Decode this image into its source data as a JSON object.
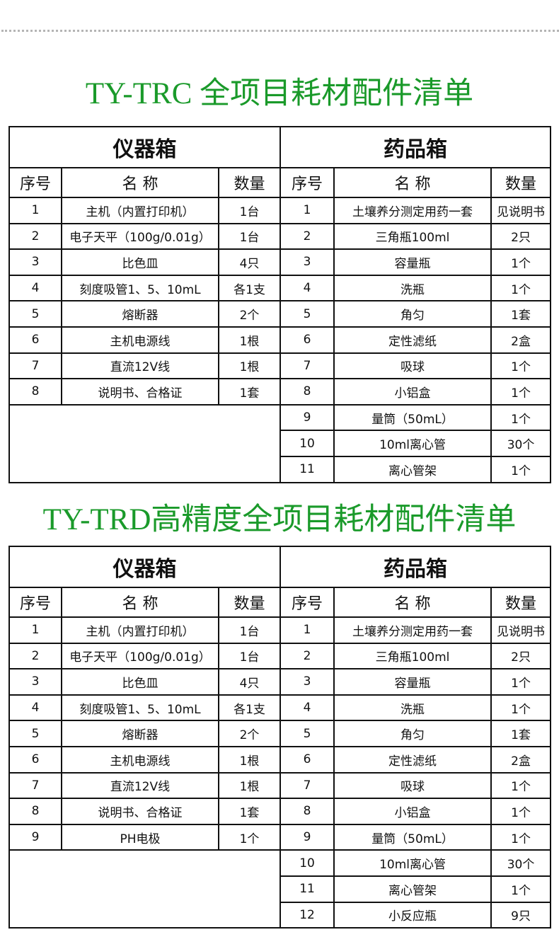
{
  "sections": [
    {
      "title": "TY-TRC 全项目耗材配件清单",
      "left_box": "仪器箱",
      "right_box": "药品箱",
      "headers": [
        "序号",
        "名 称",
        "数量"
      ],
      "instrument_items": [
        [
          "1",
          "主机（内置打印机）",
          "1台"
        ],
        [
          "2",
          "电子天平（100g/0.01g）",
          "1台"
        ],
        [
          "3",
          "比色皿",
          "4只"
        ],
        [
          "4",
          "刻度吸管1、5、10mL",
          "各1支"
        ],
        [
          "5",
          "熔断器",
          "2个"
        ],
        [
          "6",
          "主机电源线",
          "1根"
        ],
        [
          "7",
          "直流12V线",
          "1根"
        ],
        [
          "8",
          "说明书、合格证",
          "1套"
        ]
      ],
      "reagent_items": [
        [
          "1",
          "土壤养分测定用药一套",
          "见说明书"
        ],
        [
          "2",
          "三角瓶100ml",
          "2只"
        ],
        [
          "3",
          "容量瓶",
          "1个"
        ],
        [
          "4",
          "洗瓶",
          "1个"
        ],
        [
          "5",
          "角匀",
          "1套"
        ],
        [
          "6",
          "定性滤纸",
          "2盒"
        ],
        [
          "7",
          "吸球",
          "1个"
        ],
        [
          "8",
          "小铝盒",
          "1个"
        ],
        [
          "9",
          "量筒（50mL）",
          "1个"
        ],
        [
          "10",
          "10ml离心管",
          "30个"
        ],
        [
          "11",
          "离心管架",
          "1个"
        ]
      ]
    },
    {
      "title": "TY-TRD高精度全项目耗材配件清单",
      "left_box": "仪器箱",
      "right_box": "药品箱",
      "headers": [
        "序号",
        "名 称",
        "数量"
      ],
      "instrument_items": [
        [
          "1",
          "主机（内置打印机）",
          "1台"
        ],
        [
          "2",
          "电子天平（100g/0.01g）",
          "1台"
        ],
        [
          "3",
          "比色皿",
          "4只"
        ],
        [
          "4",
          "刻度吸管1、5、10mL",
          "各1支"
        ],
        [
          "5",
          "熔断器",
          "2个"
        ],
        [
          "6",
          "主机电源线",
          "1根"
        ],
        [
          "7",
          "直流12V线",
          "1根"
        ],
        [
          "8",
          "说明书、合格证",
          "1套"
        ],
        [
          "9",
          "PH电极",
          "1个"
        ]
      ],
      "reagent_items": [
        [
          "1",
          "土壤养分测定用药一套",
          "见说明书"
        ],
        [
          "2",
          "三角瓶100ml",
          "2只"
        ],
        [
          "3",
          "容量瓶",
          "1个"
        ],
        [
          "4",
          "洗瓶",
          "1个"
        ],
        [
          "5",
          "角匀",
          "1套"
        ],
        [
          "6",
          "定性滤纸",
          "2盒"
        ],
        [
          "7",
          "吸球",
          "1个"
        ],
        [
          "8",
          "小铝盒",
          "1个"
        ],
        [
          "9",
          "量筒（50mL）",
          "1个"
        ],
        [
          "10",
          "10ml离心管",
          "30个"
        ],
        [
          "11",
          "离心管架",
          "1个"
        ],
        [
          "12",
          "小反应瓶",
          "9只"
        ]
      ]
    }
  ],
  "colors": {
    "title": "#1a9a2a",
    "border": "#111111",
    "divider_dots": "#b5b5b5"
  }
}
